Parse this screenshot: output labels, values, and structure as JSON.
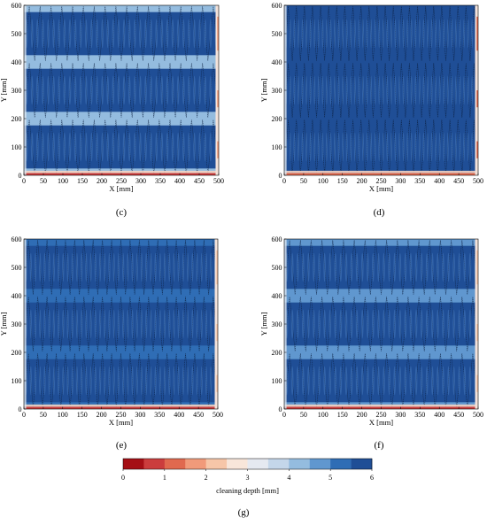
{
  "chart_data": [
    {
      "type": "heatmap",
      "panel_label": "(c)",
      "xlabel": "X [mm]",
      "ylabel": "Y [mm]",
      "xlim": [
        0,
        500
      ],
      "ylim": [
        0,
        600
      ],
      "xticks": [
        0,
        50,
        100,
        150,
        200,
        250,
        300,
        350,
        400,
        450,
        500
      ],
      "yticks": [
        0,
        100,
        200,
        300,
        400,
        500,
        600
      ],
      "x_passes": 36,
      "y_bands": [
        [
          0,
          200
        ],
        [
          200,
          400
        ],
        [
          400,
          600
        ]
      ],
      "band_core_depth_mm": 5.6,
      "band_edge_depth_mm": 4.4,
      "bottom_edge_depth_mm": 0.8,
      "right_edge_depth_mm": 1.5
    },
    {
      "type": "heatmap",
      "panel_label": "(d)",
      "xlabel": "X [mm]",
      "ylabel": "Y [mm]",
      "xlim": [
        0,
        500
      ],
      "ylim": [
        0,
        600
      ],
      "xticks": [
        0,
        50,
        100,
        150,
        200,
        250,
        300,
        350,
        400,
        450,
        500
      ],
      "yticks": [
        0,
        100,
        200,
        300,
        400,
        500,
        600
      ],
      "x_passes": 48,
      "y_bands": [
        [
          0,
          200
        ],
        [
          200,
          400
        ],
        [
          400,
          600
        ]
      ],
      "band_core_depth_mm": 5.9,
      "band_edge_depth_mm": 5.5,
      "bottom_edge_depth_mm": 1.0,
      "right_edge_depth_mm": 1.2
    },
    {
      "type": "heatmap",
      "panel_label": "(e)",
      "xlabel": "X [mm]",
      "ylabel": "Y [mm]",
      "xlim": [
        0,
        500
      ],
      "ylim": [
        0,
        600
      ],
      "xticks": [
        0,
        50,
        100,
        150,
        200,
        250,
        300,
        350,
        400,
        450,
        500
      ],
      "yticks": [
        0,
        100,
        200,
        300,
        400,
        500,
        600
      ],
      "x_passes": 42,
      "y_bands": [
        [
          0,
          200
        ],
        [
          200,
          400
        ],
        [
          400,
          600
        ]
      ],
      "band_core_depth_mm": 5.9,
      "band_edge_depth_mm": 5.4,
      "bottom_edge_depth_mm": 0.8,
      "right_edge_depth_mm": 2.0
    },
    {
      "type": "heatmap",
      "panel_label": "(f)",
      "xlabel": "X [mm]",
      "ylabel": "Y [mm]",
      "xlim": [
        0,
        500
      ],
      "ylim": [
        0,
        600
      ],
      "xticks": [
        0,
        50,
        100,
        150,
        200,
        250,
        300,
        350,
        400,
        450,
        500
      ],
      "yticks": [
        0,
        100,
        200,
        300,
        400,
        500,
        600
      ],
      "x_passes": 36,
      "y_bands": [
        [
          0,
          200
        ],
        [
          200,
          400
        ],
        [
          400,
          600
        ]
      ],
      "band_core_depth_mm": 5.7,
      "band_edge_depth_mm": 4.6,
      "bottom_edge_depth_mm": 0.9,
      "right_edge_depth_mm": 2.0
    }
  ],
  "colorbar": {
    "label": "cleaning depth [mm]",
    "panel_label": "(g)",
    "range": [
      0,
      6
    ],
    "ticks": [
      0,
      1,
      2,
      3,
      4,
      5,
      6
    ],
    "colors": [
      "#a50f15",
      "#cb3d3d",
      "#e0694f",
      "#f19a7a",
      "#f7c6a8",
      "#f8e6da",
      "#e5e9f1",
      "#c4d6ea",
      "#94bcdf",
      "#6097cf",
      "#2f6db5",
      "#1f4e96"
    ]
  }
}
